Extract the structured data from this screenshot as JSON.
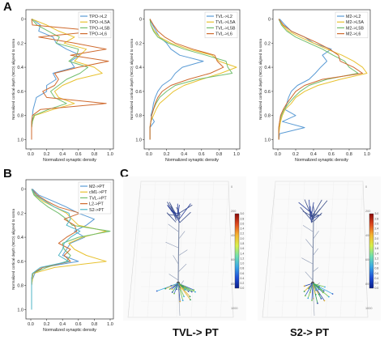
{
  "panel_labels": {
    "a": "A",
    "b": "B",
    "c": "C"
  },
  "chart_data": [
    {
      "type": "line",
      "orientation": "vertical-profile",
      "xlabel": "Normalized synaptic density",
      "ylabel": "Normalized cortical depth (NCD) aligned to soma",
      "xlim": [
        0,
        1.0
      ],
      "ylim": [
        1.05,
        -0.05
      ],
      "xticks": [
        "0.0",
        "0.2",
        "0.4",
        "0.6",
        "0.8",
        "1.0"
      ],
      "yticks": [
        "0",
        "0.2",
        "0.4",
        "0.6",
        "0.8",
        "1.0"
      ],
      "legend_position": "top-right",
      "depth": [
        0.0,
        0.05,
        0.1,
        0.15,
        0.2,
        0.25,
        0.3,
        0.35,
        0.4,
        0.45,
        0.5,
        0.55,
        0.6,
        0.65,
        0.7,
        0.75,
        0.8,
        0.85,
        0.9,
        0.95,
        1.0
      ],
      "series": [
        {
          "name": "TPO->L2",
          "color": "#5a9bd5",
          "values": [
            0.02,
            0.12,
            0.1,
            0.28,
            0.32,
            0.45,
            0.62,
            0.5,
            0.55,
            0.28,
            0.32,
            0.2,
            0.2,
            0.07,
            0.05,
            0.03,
            0.02,
            0.02,
            0.01,
            0.01,
            0.01
          ]
        },
        {
          "name": "TPO->L5A",
          "color": "#e8c230",
          "values": [
            0.01,
            0.2,
            0.35,
            0.55,
            0.42,
            0.7,
            0.62,
            0.55,
            0.8,
            0.9,
            0.58,
            0.4,
            0.3,
            0.35,
            0.55,
            0.28,
            0.05,
            0.02,
            0.01,
            0.01,
            0.01
          ]
        },
        {
          "name": "TPO->L5B",
          "color": "#72be6e",
          "values": [
            0.01,
            0.08,
            0.22,
            0.36,
            0.32,
            0.6,
            0.58,
            0.48,
            0.72,
            0.62,
            0.45,
            0.35,
            0.25,
            0.3,
            0.45,
            0.22,
            0.04,
            0.02,
            0.01,
            0.01,
            0.01
          ]
        },
        {
          "name": "TPO->L6",
          "color": "#cf6a2e",
          "values": [
            0.01,
            0.02,
            0.85,
            0.1,
            0.55,
            0.95,
            0.5,
            0.98,
            0.6,
            0.3,
            0.35,
            0.3,
            0.15,
            0.2,
            0.95,
            0.12,
            0.02,
            0.01,
            0.01,
            0.01,
            0.01
          ]
        }
      ]
    },
    {
      "type": "line",
      "orientation": "vertical-profile",
      "xlabel": "Normalized synaptic density",
      "ylabel": "Normalized cortical depth (NCD) aligned to soma",
      "xlim": [
        0,
        1.0
      ],
      "ylim": [
        1.05,
        -0.05
      ],
      "xticks": [
        "0.0",
        "0.2",
        "0.4",
        "0.6",
        "0.8",
        "1.0"
      ],
      "yticks": [
        "0",
        "0.2",
        "0.4",
        "0.6",
        "0.8",
        "1.0"
      ],
      "legend_position": "top-right",
      "depth": [
        0.0,
        0.05,
        0.1,
        0.15,
        0.2,
        0.25,
        0.3,
        0.35,
        0.4,
        0.45,
        0.5,
        0.55,
        0.6,
        0.65,
        0.7,
        0.75,
        0.8,
        0.85,
        0.9,
        0.95,
        1.0
      ],
      "series": [
        {
          "name": "TVL->L2",
          "color": "#5a9bd5",
          "values": [
            0.01,
            0.04,
            0.08,
            0.12,
            0.2,
            0.25,
            0.35,
            0.62,
            0.38,
            0.3,
            0.25,
            0.15,
            0.1,
            0.07,
            0.05,
            0.04,
            0.02,
            0.06,
            0.01,
            0.01,
            0.01
          ]
        },
        {
          "name": "TVL->L5A",
          "color": "#e8c230",
          "values": [
            0.01,
            0.02,
            0.06,
            0.12,
            0.25,
            0.45,
            0.72,
            0.8,
            1.0,
            0.82,
            0.6,
            0.4,
            0.28,
            0.2,
            0.12,
            0.08,
            0.05,
            0.02,
            0.01,
            0.01,
            0.01
          ]
        },
        {
          "name": "TVL->L5B",
          "color": "#72be6e",
          "values": [
            0.01,
            0.02,
            0.05,
            0.1,
            0.22,
            0.4,
            0.65,
            0.88,
            0.9,
            0.95,
            0.55,
            0.3,
            0.2,
            0.12,
            0.08,
            0.05,
            0.03,
            0.02,
            0.01,
            0.01,
            0.01
          ]
        },
        {
          "name": "TVL->L6",
          "color": "#cf6a2e",
          "values": [
            0.01,
            0.05,
            0.1,
            0.18,
            0.3,
            0.5,
            0.75,
            0.78,
            0.85,
            0.7,
            0.45,
            0.25,
            0.15,
            0.1,
            0.07,
            0.05,
            0.03,
            0.02,
            0.01,
            0.01,
            0.01
          ]
        }
      ]
    },
    {
      "type": "line",
      "orientation": "vertical-profile",
      "xlabel": "Normalized synaptic density",
      "ylabel": "Normalized cortical depth (NCD) aligned to soma",
      "xlim": [
        0,
        1.0
      ],
      "ylim": [
        1.05,
        -0.05
      ],
      "xticks": [
        "0.0",
        "0.2",
        "0.4",
        "0.6",
        "0.8",
        "1.0"
      ],
      "yticks": [
        "0",
        "0.2",
        "0.4",
        "0.6",
        "0.8",
        "1.0"
      ],
      "legend_position": "top-right",
      "depth": [
        0.0,
        0.05,
        0.1,
        0.15,
        0.2,
        0.25,
        0.3,
        0.35,
        0.4,
        0.45,
        0.5,
        0.55,
        0.6,
        0.65,
        0.7,
        0.75,
        0.8,
        0.85,
        0.9,
        0.95,
        1.0
      ],
      "series": [
        {
          "name": "M2->L2",
          "color": "#5a9bd5",
          "values": [
            0.02,
            0.08,
            0.15,
            0.3,
            0.4,
            0.6,
            0.5,
            0.55,
            0.48,
            0.42,
            0.35,
            0.22,
            0.15,
            0.12,
            0.1,
            0.08,
            0.2,
            0.05,
            0.3,
            0.02,
            0.01
          ]
        },
        {
          "name": "M2->L5A",
          "color": "#e8c230",
          "values": [
            0.01,
            0.05,
            0.12,
            0.25,
            0.4,
            0.55,
            0.72,
            0.85,
            0.95,
            1.0,
            0.7,
            0.45,
            0.3,
            0.2,
            0.15,
            0.08,
            0.05,
            0.03,
            0.02,
            0.01,
            0.01
          ]
        },
        {
          "name": "M2->L5B",
          "color": "#72be6e",
          "values": [
            0.01,
            0.04,
            0.1,
            0.2,
            0.35,
            0.5,
            0.62,
            0.75,
            0.8,
            0.9,
            0.55,
            0.35,
            0.25,
            0.18,
            0.12,
            0.07,
            0.04,
            0.02,
            0.01,
            0.01,
            0.01
          ]
        },
        {
          "name": "M2->L6",
          "color": "#cf6a2e",
          "values": [
            0.01,
            0.06,
            0.15,
            0.3,
            0.45,
            0.58,
            0.68,
            0.7,
            0.85,
            0.95,
            0.5,
            0.3,
            0.2,
            0.15,
            0.1,
            0.06,
            0.03,
            0.02,
            0.01,
            0.01,
            0.01
          ]
        }
      ]
    },
    {
      "type": "line",
      "orientation": "vertical-profile",
      "xlabel": "Normalized synaptic density",
      "ylabel": "Normalized cortical depth (NCD) aligned to soma",
      "xlim": [
        0,
        1.0
      ],
      "ylim": [
        1.05,
        -0.05
      ],
      "xticks": [
        "0.0",
        "0.2",
        "0.4",
        "0.6",
        "0.8",
        "1.0"
      ],
      "yticks": [
        "0",
        "0.2",
        "0.4",
        "0.6",
        "0.8",
        "1.0"
      ],
      "legend_position": "top-right",
      "depth": [
        0.0,
        0.05,
        0.1,
        0.15,
        0.2,
        0.25,
        0.3,
        0.35,
        0.4,
        0.45,
        0.5,
        0.55,
        0.6,
        0.65,
        0.7,
        0.75,
        0.8,
        0.85,
        0.9,
        0.95,
        1.0
      ],
      "series": [
        {
          "name": "M2->PT",
          "color": "#5a9bd5",
          "values": [
            0.02,
            0.1,
            0.28,
            0.45,
            0.6,
            0.8,
            0.7,
            0.55,
            0.68,
            0.5,
            0.45,
            0.4,
            0.6,
            0.15,
            0.05,
            0.02,
            0.01,
            0.01,
            0.01,
            0.01,
            0.01
          ]
        },
        {
          "name": "cM1->PT",
          "color": "#e8c230",
          "values": [
            0.01,
            0.05,
            0.15,
            0.3,
            0.45,
            0.52,
            0.6,
            0.95,
            0.65,
            0.48,
            0.55,
            0.7,
            0.95,
            0.3,
            0.03,
            0.02,
            0.01,
            0.01,
            0.01,
            0.01,
            0.01
          ]
        },
        {
          "name": "TVL->PT",
          "color": "#72be6e",
          "values": [
            0.01,
            0.04,
            0.12,
            0.22,
            0.35,
            0.45,
            0.52,
            1.0,
            0.6,
            0.4,
            0.42,
            0.5,
            0.45,
            0.2,
            0.02,
            0.01,
            0.01,
            0.01,
            0.01,
            0.01,
            0.01
          ]
        },
        {
          "name": "L2->PT",
          "color": "#cf6a2e",
          "values": [
            0.01,
            0.08,
            0.2,
            0.35,
            0.62,
            0.42,
            0.55,
            0.58,
            0.45,
            0.35,
            0.5,
            0.42,
            0.5,
            0.15,
            0.02,
            0.01,
            0.01,
            0.01,
            0.01,
            0.01,
            0.01
          ]
        },
        {
          "name": "S2->PT",
          "color": "#4fb6c6",
          "values": [
            0.01,
            0.06,
            0.18,
            0.3,
            0.48,
            0.5,
            0.45,
            0.62,
            0.5,
            0.42,
            0.4,
            0.35,
            0.48,
            0.12,
            0.02,
            0.01,
            0.01,
            0.01,
            0.01,
            0.01,
            0.01
          ]
        }
      ]
    }
  ],
  "renders": [
    {
      "caption": "TVL-> PT",
      "colorbar_ticks": [
        "0.0",
        "0.2",
        "0.4",
        "0.6",
        "0.8",
        "1.0",
        "1.2",
        "1.4",
        "1.6",
        "1.8",
        "2.0",
        "2.2",
        "2.4",
        "2.6",
        "2.8",
        "3.0"
      ],
      "colorbar_stops": [
        "#0b1f8c",
        "#1f4fd8",
        "#3aa8e6",
        "#6fe0b0",
        "#d8f04a",
        "#f6b431",
        "#e04a1f",
        "#8b0a0a"
      ],
      "depth_ticks": [
        "0",
        "200",
        "400",
        "600",
        "800",
        "1000"
      ]
    },
    {
      "caption": "S2-> PT",
      "colorbar_ticks": [
        "0.0",
        "0.2",
        "0.4",
        "0.6",
        "0.8",
        "1.0",
        "1.2",
        "1.4",
        "1.6",
        "1.8",
        "2.0",
        "2.2",
        "2.4",
        "2.6",
        "2.8",
        "3.0"
      ],
      "colorbar_stops": [
        "#0b1f8c",
        "#1f4fd8",
        "#3aa8e6",
        "#6fe0b0",
        "#d8f04a",
        "#f6b431",
        "#e04a1f",
        "#8b0a0a"
      ],
      "depth_ticks": [
        "0",
        "200",
        "400",
        "600",
        "800",
        "1000"
      ]
    }
  ]
}
